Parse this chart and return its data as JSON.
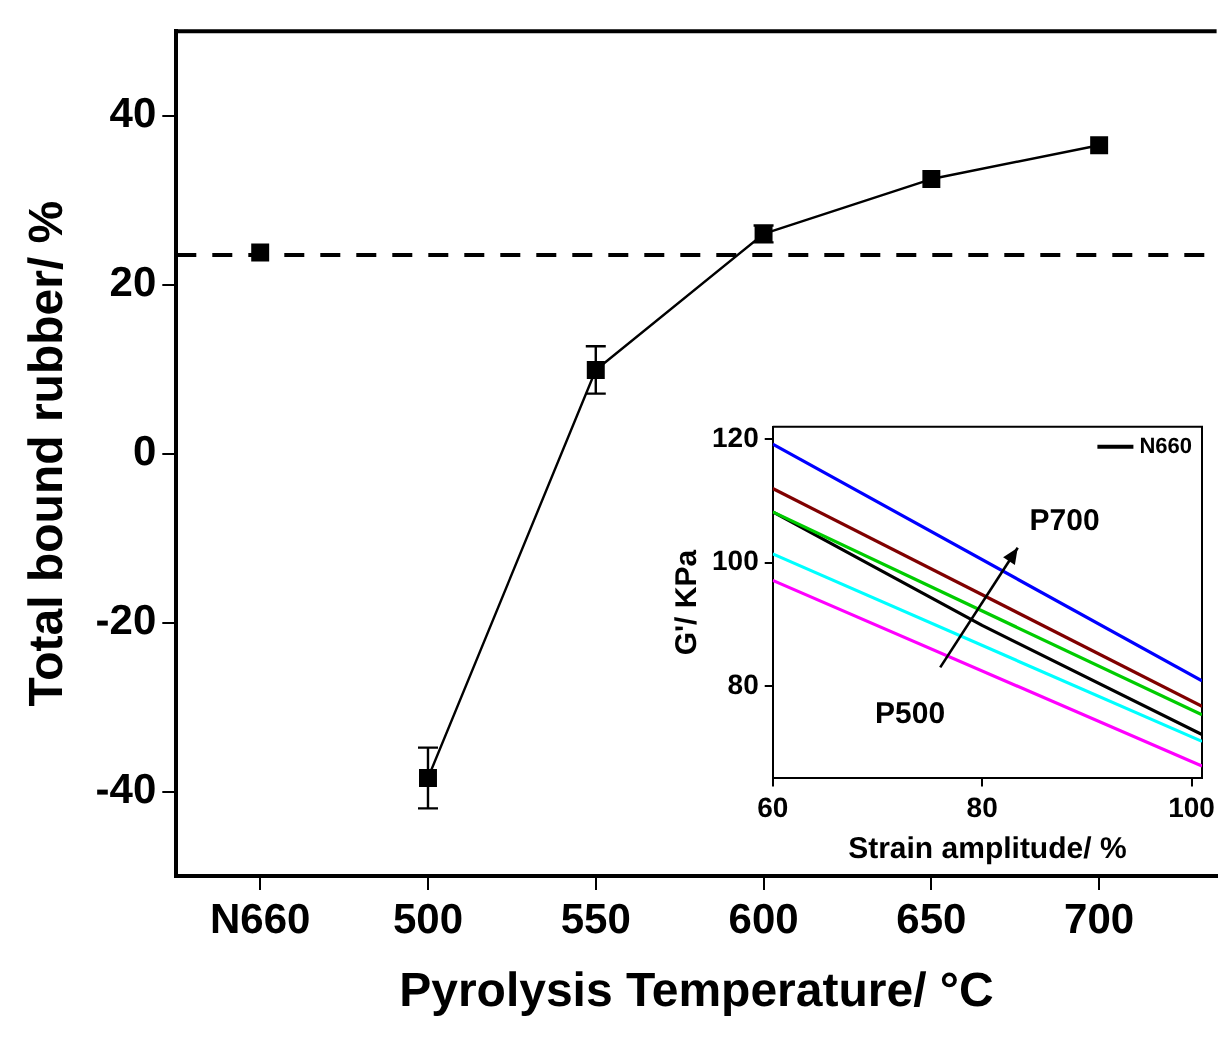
{
  "chart_data": [
    {
      "type": "line",
      "xlabel": "Pyrolysis Temperature/ °C",
      "ylabel": "Total bound rubber/ %",
      "categories": [
        "N660",
        "500",
        "550",
        "600",
        "650",
        "700"
      ],
      "ylim": [
        -50,
        50
      ],
      "yticks": [
        -40,
        -20,
        0,
        20,
        40
      ],
      "marker": "square",
      "grid": false,
      "series": [
        {
          "type": "scatter",
          "color": "#000000",
          "values": [
            23.8,
            null,
            null,
            null,
            null,
            null
          ]
        },
        {
          "type": "line",
          "color": "#000000",
          "values": [
            null,
            -38.4,
            9.9,
            26.0,
            32.5,
            36.5
          ],
          "errors": [
            null,
            3.6,
            2.8,
            1.0,
            null,
            null
          ]
        }
      ],
      "ref_lines": [
        {
          "axis": "y",
          "value": 23.5,
          "line_style": "dashed",
          "color": "#000000"
        }
      ]
    },
    {
      "type": "line",
      "xlabel": "Strain amplitude/ %",
      "ylabel": "G'/ KPa",
      "xlim": [
        60,
        101
      ],
      "xticks": [
        60,
        80,
        100
      ],
      "ylim": [
        65,
        122
      ],
      "yticks": [
        80,
        100,
        120
      ],
      "grid": false,
      "legend": "top right",
      "marker": "none",
      "annotations": [
        "P700",
        "P500"
      ],
      "series": [
        {
          "color": "#0000ff",
          "x": [
            60,
            101
          ],
          "values": [
            119.2,
            80.8
          ]
        },
        {
          "color": "#800000",
          "x": [
            60,
            101
          ],
          "values": [
            112.0,
            76.7
          ]
        },
        {
          "color": "#00cc00",
          "x": [
            60,
            101
          ],
          "values": [
            108.2,
            75.3
          ]
        },
        {
          "name": "N660",
          "color": "#000000",
          "x": [
            60,
            80,
            101
          ],
          "values": [
            108.2,
            89.8,
            72.1
          ]
        },
        {
          "color": "#00ffff",
          "x": [
            60,
            101
          ],
          "values": [
            101.4,
            71.0
          ]
        },
        {
          "color": "#ff00ff",
          "x": [
            60,
            101
          ],
          "values": [
            97.1,
            67.0
          ]
        }
      ]
    }
  ]
}
